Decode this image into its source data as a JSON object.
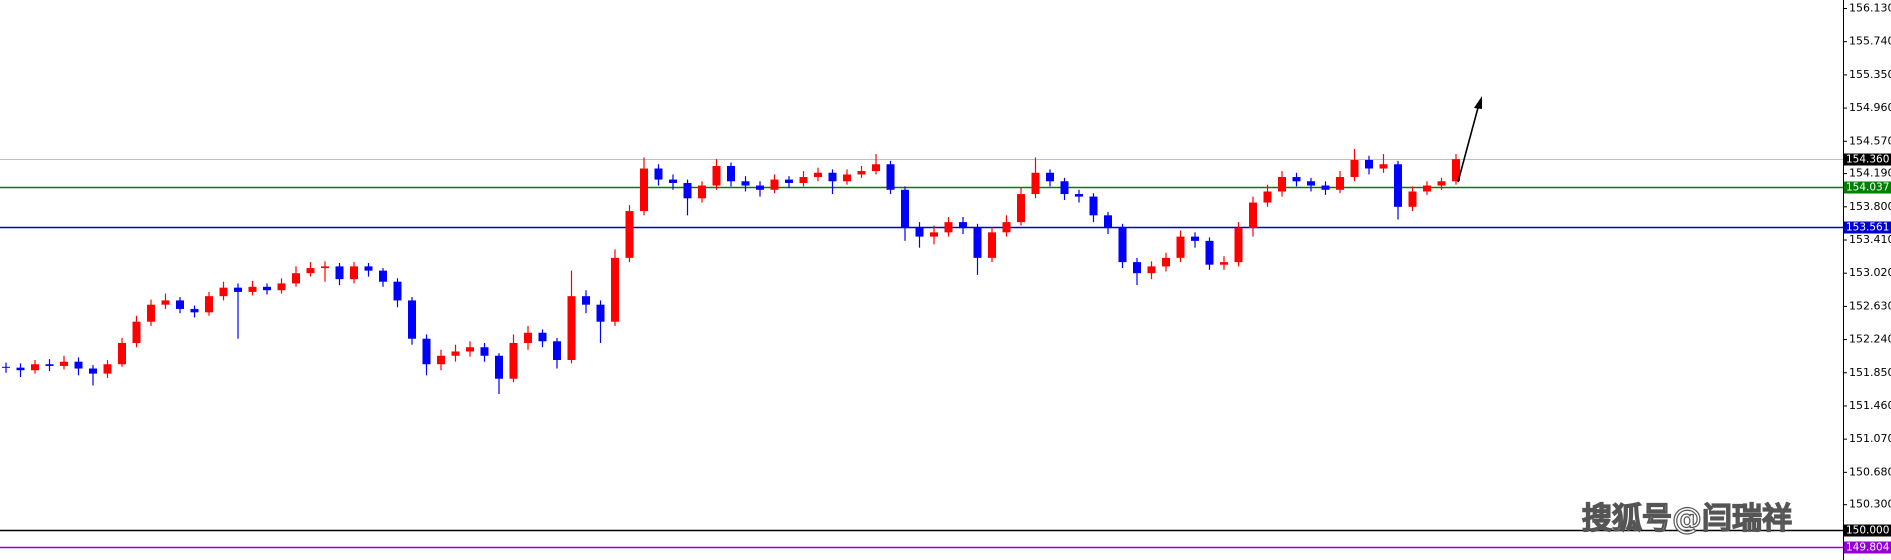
{
  "chart_data": {
    "type": "candlestick",
    "up_color": "#ff0000",
    "down_color": "#0000ff",
    "ylim": [
      149.65,
      156.23
    ],
    "yticks": [
      {
        "value": 156.13,
        "label": "156.130"
      },
      {
        "value": 155.74,
        "label": "155.740"
      },
      {
        "value": 155.35,
        "label": "155.350"
      },
      {
        "value": 154.96,
        "label": "154.960"
      },
      {
        "value": 154.57,
        "label": "154.570"
      },
      {
        "value": 154.19,
        "label": "154.190"
      },
      {
        "value": 153.8,
        "label": "153.800"
      },
      {
        "value": 153.41,
        "label": "153.410"
      },
      {
        "value": 153.02,
        "label": "153.020"
      },
      {
        "value": 152.63,
        "label": "152.630"
      },
      {
        "value": 152.24,
        "label": "152.240"
      },
      {
        "value": 151.85,
        "label": "151.850"
      },
      {
        "value": 151.46,
        "label": "151.460"
      },
      {
        "value": 151.07,
        "label": "151.070"
      },
      {
        "value": 150.68,
        "label": "150.680"
      },
      {
        "value": 150.3,
        "label": "150.300"
      }
    ],
    "levels": [
      {
        "value": 154.36,
        "label": "154.360",
        "color": "#c0c0c0",
        "box": "#000000"
      },
      {
        "value": 154.037,
        "label": "154.037",
        "color": "#008000",
        "box": "#008000"
      },
      {
        "value": 153.561,
        "label": "153.561",
        "color": "#0000cd",
        "box": "#0000cd"
      },
      {
        "value": 150.0,
        "label": "150.000",
        "color": "#000000",
        "box": "#000000"
      },
      {
        "value": 149.804,
        "label": "149.804",
        "color": "#9400d3",
        "box": "#9400d3"
      }
    ],
    "watermark": "搜狐号@闫瑞祥",
    "open": [
      151.92,
      151.91,
      151.88,
      151.95,
      151.93,
      151.98,
      151.9,
      151.84,
      151.95,
      152.2,
      152.45,
      152.65,
      152.7,
      152.6,
      152.56,
      152.75,
      152.85,
      152.8,
      152.86,
      152.82,
      152.9,
      153.02,
      153.08,
      153.1,
      152.95,
      153.1,
      153.05,
      152.92,
      152.7,
      152.25,
      151.95,
      152.05,
      152.1,
      152.15,
      152.05,
      151.78,
      152.2,
      152.32,
      152.22,
      152.0,
      152.75,
      152.65,
      152.45,
      153.2,
      153.75,
      154.25,
      154.12,
      154.08,
      153.9,
      154.05,
      154.28,
      154.1,
      154.05,
      154.0,
      154.12,
      154.08,
      154.15,
      154.2,
      154.1,
      154.18,
      154.22,
      154.3,
      154.0,
      153.55,
      153.45,
      153.5,
      153.62,
      153.55,
      153.2,
      153.5,
      153.62,
      153.95,
      154.2,
      154.1,
      153.95,
      153.92,
      153.7,
      153.55,
      153.15,
      153.02,
      153.1,
      153.2,
      153.45,
      153.4,
      153.12,
      153.15,
      153.55,
      153.85,
      153.98,
      154.15,
      154.1,
      154.05,
      154.0,
      154.15,
      154.35,
      154.25,
      154.3,
      153.8,
      153.98,
      154.05,
      154.1
    ],
    "high": [
      151.97,
      151.96,
      152.0,
      152.01,
      152.05,
      152.03,
      151.94,
      152.0,
      152.26,
      152.52,
      152.71,
      152.78,
      152.74,
      152.64,
      152.8,
      152.92,
      152.9,
      152.93,
      152.9,
      152.96,
      153.1,
      153.15,
      153.16,
      153.14,
      153.15,
      153.14,
      153.08,
      152.96,
      152.74,
      152.3,
      152.12,
      152.18,
      152.22,
      152.2,
      152.08,
      152.3,
      152.4,
      152.36,
      152.26,
      153.05,
      152.82,
      152.7,
      153.3,
      153.82,
      154.38,
      154.3,
      154.18,
      154.12,
      154.1,
      154.36,
      154.32,
      154.16,
      154.1,
      154.18,
      154.16,
      154.22,
      154.26,
      154.24,
      154.24,
      154.28,
      154.42,
      154.34,
      154.04,
      153.62,
      153.58,
      153.68,
      153.68,
      153.6,
      153.56,
      153.7,
      154.02,
      154.38,
      154.24,
      154.14,
      154.0,
      153.96,
      153.74,
      153.6,
      153.2,
      153.16,
      153.26,
      153.52,
      153.5,
      153.44,
      153.22,
      153.62,
      153.92,
      154.06,
      154.22,
      154.2,
      154.14,
      154.1,
      154.22,
      154.48,
      154.4,
      154.42,
      154.34,
      154.04,
      154.1,
      154.14,
      154.42
    ],
    "low": [
      151.85,
      151.8,
      151.84,
      151.87,
      151.89,
      151.82,
      151.7,
      151.79,
      151.92,
      152.15,
      152.4,
      152.6,
      152.55,
      152.5,
      152.52,
      152.7,
      152.25,
      152.76,
      152.77,
      152.78,
      152.86,
      152.98,
      152.92,
      152.88,
      152.9,
      152.98,
      152.86,
      152.62,
      152.18,
      151.82,
      151.88,
      151.98,
      152.04,
      151.98,
      151.6,
      151.74,
      152.12,
      152.15,
      151.9,
      151.96,
      152.55,
      152.2,
      152.4,
      153.15,
      153.7,
      154.05,
      154.0,
      153.7,
      153.85,
      154.0,
      154.04,
      153.98,
      153.92,
      153.96,
      154.02,
      154.04,
      154.1,
      153.95,
      154.06,
      154.14,
      154.18,
      153.95,
      153.4,
      153.32,
      153.36,
      153.45,
      153.48,
      153.0,
      153.15,
      153.45,
      153.58,
      153.9,
      154.04,
      153.88,
      153.85,
      153.62,
      153.48,
      153.08,
      152.88,
      152.95,
      153.04,
      153.15,
      153.32,
      153.06,
      153.06,
      153.1,
      153.45,
      153.8,
      153.92,
      154.04,
      153.98,
      153.94,
      153.96,
      154.1,
      154.18,
      154.2,
      153.65,
      153.75,
      153.94,
      154.0,
      154.06
    ],
    "close": [
      151.91,
      151.88,
      151.95,
      151.93,
      151.98,
      151.9,
      151.84,
      151.95,
      152.2,
      152.45,
      152.65,
      152.7,
      152.6,
      152.56,
      152.75,
      152.85,
      152.8,
      152.86,
      152.82,
      152.9,
      153.02,
      153.08,
      153.1,
      152.95,
      153.1,
      153.05,
      152.92,
      152.7,
      152.25,
      151.95,
      152.05,
      152.1,
      152.15,
      152.05,
      151.78,
      152.2,
      152.32,
      152.22,
      152.0,
      152.75,
      152.65,
      152.45,
      153.2,
      153.75,
      154.25,
      154.12,
      154.08,
      153.9,
      154.05,
      154.28,
      154.1,
      154.05,
      154.0,
      154.12,
      154.08,
      154.15,
      154.2,
      154.1,
      154.18,
      154.22,
      154.3,
      154.0,
      153.55,
      153.45,
      153.5,
      153.62,
      153.55,
      153.2,
      153.5,
      153.62,
      153.95,
      154.2,
      154.1,
      153.95,
      153.92,
      153.7,
      153.55,
      153.15,
      153.02,
      153.1,
      153.2,
      153.45,
      153.4,
      153.12,
      153.15,
      153.55,
      153.85,
      153.98,
      154.15,
      154.1,
      154.05,
      154.0,
      154.15,
      154.35,
      154.25,
      154.3,
      153.8,
      153.98,
      154.05,
      154.1,
      154.36
    ]
  }
}
